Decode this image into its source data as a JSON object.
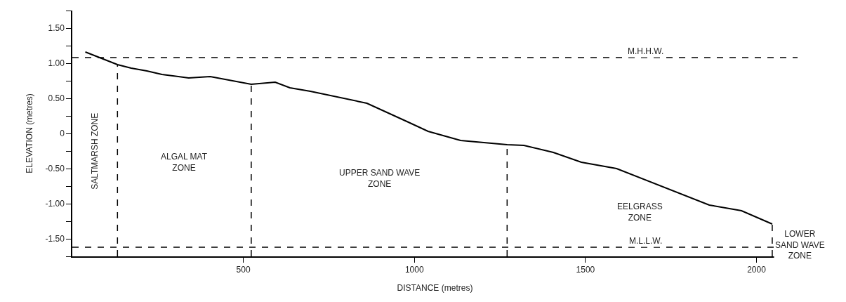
{
  "chart_data": {
    "type": "line",
    "xlabel": "DISTANCE (metres)",
    "ylabel": "ELEVATION (metres)",
    "x": [
      38,
      132,
      172,
      218,
      262,
      340,
      403,
      523,
      593,
      636,
      696,
      861,
      978,
      1040,
      1135,
      1271,
      1320,
      1406,
      1488,
      1591,
      1862,
      1956,
      2046
    ],
    "series": [
      {
        "color": "#000000",
        "values": [
          1.16,
          0.98,
          0.93,
          0.89,
          0.84,
          0.79,
          0.81,
          0.7,
          0.73,
          0.65,
          0.6,
          0.43,
          0.17,
          0.03,
          -0.1,
          -0.16,
          -0.17,
          -0.27,
          -0.41,
          -0.5,
          -1.02,
          -1.1,
          -1.29
        ]
      }
    ],
    "xlim": [
      0,
      2120
    ],
    "xticks": [
      500,
      1000,
      1500,
      2000
    ],
    "ylim": [
      -1.75,
      1.75
    ],
    "yticks": [
      {
        "value": -1.75,
        "label": null
      },
      {
        "value": -1.5,
        "label": "-1.50"
      },
      {
        "value": -1.25,
        "label": null
      },
      {
        "value": -1,
        "label": "-1.00"
      },
      {
        "value": -0.75,
        "label": null
      },
      {
        "value": -0.5,
        "label": "-0.50"
      },
      {
        "value": -0.25,
        "label": null
      },
      0,
      {
        "value": 0.25,
        "label": null
      },
      {
        "value": 0.5,
        "label": "0.50"
      },
      {
        "value": 0.75,
        "label": null
      },
      {
        "value": 1,
        "label": "1.00"
      },
      {
        "value": 1.25,
        "label": null
      },
      {
        "value": 1.5,
        "label": "1.50"
      },
      {
        "value": 1.75,
        "label": null
      }
    ],
    "marker": "none",
    "line_style": "solid",
    "ref_lines": [
      {
        "axis": "y",
        "value": 1.08,
        "label": "M.H.H.W.",
        "line_style": "dashed"
      },
      {
        "axis": "y",
        "value": -1.62,
        "label": "M.L.L.W.",
        "line_style": "dashed"
      },
      {
        "axis": "x",
        "value": 132,
        "line_style": "dashed"
      },
      {
        "axis": "x",
        "value": 523,
        "line_style": "dashed"
      },
      {
        "axis": "x",
        "value": 1271,
        "line_style": "dashed"
      },
      {
        "axis": "x",
        "value": 2046,
        "line_style": "dashed"
      }
    ],
    "annotations": [
      "SALTMARSH ZONE",
      "ALGAL MAT\nZONE",
      "UPPER SAND WAVE\nZONE",
      "EELGRASS\nZONE",
      "LOWER\nSAND WAVE\nZONE"
    ]
  }
}
